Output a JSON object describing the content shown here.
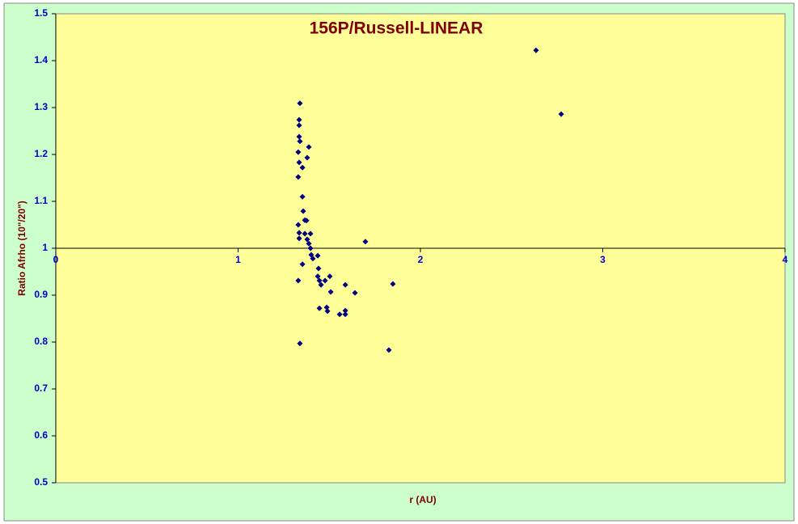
{
  "chart_data": {
    "type": "scatter",
    "title": "156P/Russell-LINEAR",
    "x_label": "r (AU)",
    "y_label": "Ratio Afrho (10\"/20\")",
    "color": "#000080",
    "x": [
      2.634,
      2.772,
      1.339,
      1.335,
      1.335,
      1.335,
      1.339,
      1.33,
      1.335,
      1.353,
      1.388,
      1.379,
      1.33,
      1.353,
      1.357,
      1.366,
      1.375,
      1.33,
      1.335,
      1.335,
      1.366,
      1.397,
      1.379,
      1.388,
      1.397,
      1.698,
      1.401,
      1.41,
      1.437,
      1.353,
      1.441,
      1.437,
      1.446,
      1.455,
      1.477,
      1.503,
      1.33,
      1.588,
      1.508,
      1.641,
      1.849,
      1.446,
      1.486,
      1.49,
      1.588,
      1.588,
      1.557,
      1.339,
      1.827
    ],
    "values": [
      1.422,
      1.286,
      1.309,
      1.274,
      1.262,
      1.238,
      1.228,
      1.205,
      1.183,
      1.172,
      1.216,
      1.193,
      1.152,
      1.11,
      1.079,
      1.06,
      1.059,
      1.05,
      1.033,
      1.021,
      1.031,
      1.031,
      1.019,
      1.01,
      1.0,
      1.014,
      0.986,
      0.978,
      0.984,
      0.966,
      0.957,
      0.94,
      0.931,
      0.922,
      0.931,
      0.94,
      0.931,
      0.922,
      0.907,
      0.905,
      0.924,
      0.872,
      0.874,
      0.866,
      0.867,
      0.859,
      0.859,
      0.797,
      0.783
    ],
    "xlim": [
      0,
      4
    ],
    "xticks": [
      0,
      1,
      2,
      3,
      4
    ],
    "ylim": [
      0.5,
      1.5
    ],
    "yticks": [
      0.5,
      0.6,
      0.7,
      0.8,
      0.9,
      1,
      1.1,
      1.2,
      1.3,
      1.4,
      1.5
    ],
    "x_axis_at": 1
  }
}
